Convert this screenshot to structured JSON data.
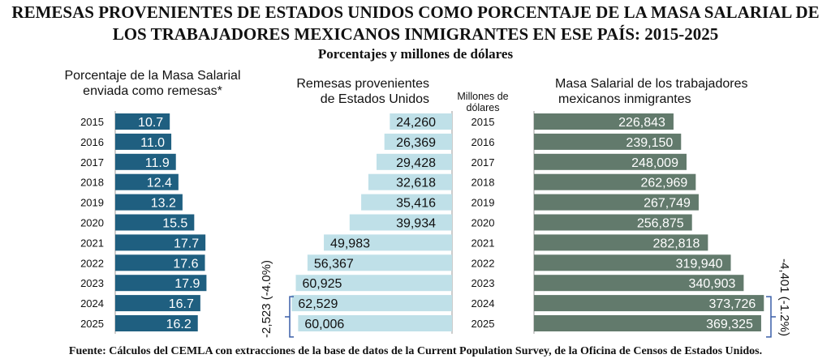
{
  "title_line1": "REMESAS PROVENIENTES DE ESTADOS UNIDOS COMO PORCENTAJE DE LA MASA SALARIAL DE",
  "title_line2": "LOS TRABAJADORES MEXICANOS INMIGRANTES EN ESE PAÍS: 2015-2025",
  "subtitle": "Porcentajes y millones de dólares",
  "footer": "Fuente: Cálculos del CEMLA con extracciones de la base de datos de la Current Population Survey, de la Oficina de Censos de Estados Unidos.",
  "chart_data": [
    {
      "type": "bar",
      "orientation": "horizontal",
      "title_line1": "Porcentaje de la Masa Salarial",
      "title_line2": "enviada como remesas*",
      "categories": [
        "2015",
        "2016",
        "2017",
        "2018",
        "2019",
        "2020",
        "2021",
        "2022",
        "2023",
        "2024",
        "2025"
      ],
      "values": [
        10.7,
        11.0,
        11.9,
        12.4,
        13.2,
        15.5,
        17.7,
        17.6,
        17.9,
        16.7,
        16.2
      ],
      "labels": [
        "10.7",
        "11.0",
        "11.9",
        "12.4",
        "13.2",
        "15.5",
        "17.7",
        "17.6",
        "17.9",
        "16.7",
        "16.2"
      ],
      "color": "#1f5f80",
      "label_color": "#ffffff"
    },
    {
      "type": "bar",
      "orientation": "horizontal-reversed",
      "title_line1": "Remesas provenientes",
      "title_line2": "de Estados Unidos",
      "unit_line1": "Millones de",
      "unit_line2": "dólares",
      "categories": [
        "2015",
        "2016",
        "2017",
        "2018",
        "2019",
        "2020",
        "2021",
        "2022",
        "2023",
        "2024",
        "2025"
      ],
      "values": [
        24260,
        26369,
        29428,
        32618,
        35416,
        39934,
        49983,
        56367,
        60925,
        62529,
        60006
      ],
      "labels": [
        "24,260",
        "26,369",
        "29,428",
        "32,618",
        "35,416",
        "39,934",
        "49,983",
        "56,367",
        "60,925",
        "62,529",
        "60,006"
      ],
      "color": "#bfe0e8",
      "label_color": "#111111",
      "annotation": "-2,523 (-4.0%)"
    },
    {
      "type": "bar",
      "orientation": "horizontal",
      "title_line1": "Masa Salarial de los trabajadores",
      "title_line2": "mexicanos inmigrantes",
      "categories": [
        "2015",
        "2016",
        "2017",
        "2018",
        "2019",
        "2020",
        "2021",
        "2022",
        "2023",
        "2024",
        "2025"
      ],
      "values": [
        226843,
        239150,
        248009,
        262969,
        267749,
        256875,
        282818,
        319940,
        340903,
        373726,
        369325
      ],
      "labels": [
        "226,843",
        "239,150",
        "248,009",
        "262,969",
        "267,749",
        "256,875",
        "282,818",
        "319,940",
        "340,903",
        "373,726",
        "369,325"
      ],
      "color": "#627a6c",
      "label_color": "#ffffff",
      "annotation": "-4,401 (-1.2%)"
    }
  ]
}
